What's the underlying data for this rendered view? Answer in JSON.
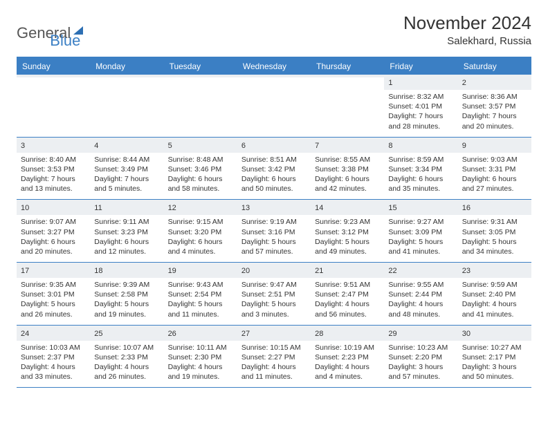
{
  "brand": {
    "part1": "General",
    "part2": "Blue"
  },
  "title": "November 2024",
  "location": "Salekhard, Russia",
  "colors": {
    "accent": "#3b7fc4",
    "shade_row": "#eceff2",
    "text": "#333333",
    "background": "#ffffff"
  },
  "typography": {
    "title_fontsize": 26,
    "subtitle_fontsize": 15,
    "dow_fontsize": 12,
    "daynum_fontsize": 11,
    "info_fontsize": 10.5
  },
  "days_of_week": [
    "Sunday",
    "Monday",
    "Tuesday",
    "Wednesday",
    "Thursday",
    "Friday",
    "Saturday"
  ],
  "weeks": [
    [
      {
        "day": "",
        "sunrise": "",
        "sunset": "",
        "daylight": ""
      },
      {
        "day": "",
        "sunrise": "",
        "sunset": "",
        "daylight": ""
      },
      {
        "day": "",
        "sunrise": "",
        "sunset": "",
        "daylight": ""
      },
      {
        "day": "",
        "sunrise": "",
        "sunset": "",
        "daylight": ""
      },
      {
        "day": "",
        "sunrise": "",
        "sunset": "",
        "daylight": ""
      },
      {
        "day": "1",
        "sunrise": "Sunrise: 8:32 AM",
        "sunset": "Sunset: 4:01 PM",
        "daylight": "Daylight: 7 hours and 28 minutes."
      },
      {
        "day": "2",
        "sunrise": "Sunrise: 8:36 AM",
        "sunset": "Sunset: 3:57 PM",
        "daylight": "Daylight: 7 hours and 20 minutes."
      }
    ],
    [
      {
        "day": "3",
        "sunrise": "Sunrise: 8:40 AM",
        "sunset": "Sunset: 3:53 PM",
        "daylight": "Daylight: 7 hours and 13 minutes."
      },
      {
        "day": "4",
        "sunrise": "Sunrise: 8:44 AM",
        "sunset": "Sunset: 3:49 PM",
        "daylight": "Daylight: 7 hours and 5 minutes."
      },
      {
        "day": "5",
        "sunrise": "Sunrise: 8:48 AM",
        "sunset": "Sunset: 3:46 PM",
        "daylight": "Daylight: 6 hours and 58 minutes."
      },
      {
        "day": "6",
        "sunrise": "Sunrise: 8:51 AM",
        "sunset": "Sunset: 3:42 PM",
        "daylight": "Daylight: 6 hours and 50 minutes."
      },
      {
        "day": "7",
        "sunrise": "Sunrise: 8:55 AM",
        "sunset": "Sunset: 3:38 PM",
        "daylight": "Daylight: 6 hours and 42 minutes."
      },
      {
        "day": "8",
        "sunrise": "Sunrise: 8:59 AM",
        "sunset": "Sunset: 3:34 PM",
        "daylight": "Daylight: 6 hours and 35 minutes."
      },
      {
        "day": "9",
        "sunrise": "Sunrise: 9:03 AM",
        "sunset": "Sunset: 3:31 PM",
        "daylight": "Daylight: 6 hours and 27 minutes."
      }
    ],
    [
      {
        "day": "10",
        "sunrise": "Sunrise: 9:07 AM",
        "sunset": "Sunset: 3:27 PM",
        "daylight": "Daylight: 6 hours and 20 minutes."
      },
      {
        "day": "11",
        "sunrise": "Sunrise: 9:11 AM",
        "sunset": "Sunset: 3:23 PM",
        "daylight": "Daylight: 6 hours and 12 minutes."
      },
      {
        "day": "12",
        "sunrise": "Sunrise: 9:15 AM",
        "sunset": "Sunset: 3:20 PM",
        "daylight": "Daylight: 6 hours and 4 minutes."
      },
      {
        "day": "13",
        "sunrise": "Sunrise: 9:19 AM",
        "sunset": "Sunset: 3:16 PM",
        "daylight": "Daylight: 5 hours and 57 minutes."
      },
      {
        "day": "14",
        "sunrise": "Sunrise: 9:23 AM",
        "sunset": "Sunset: 3:12 PM",
        "daylight": "Daylight: 5 hours and 49 minutes."
      },
      {
        "day": "15",
        "sunrise": "Sunrise: 9:27 AM",
        "sunset": "Sunset: 3:09 PM",
        "daylight": "Daylight: 5 hours and 41 minutes."
      },
      {
        "day": "16",
        "sunrise": "Sunrise: 9:31 AM",
        "sunset": "Sunset: 3:05 PM",
        "daylight": "Daylight: 5 hours and 34 minutes."
      }
    ],
    [
      {
        "day": "17",
        "sunrise": "Sunrise: 9:35 AM",
        "sunset": "Sunset: 3:01 PM",
        "daylight": "Daylight: 5 hours and 26 minutes."
      },
      {
        "day": "18",
        "sunrise": "Sunrise: 9:39 AM",
        "sunset": "Sunset: 2:58 PM",
        "daylight": "Daylight: 5 hours and 19 minutes."
      },
      {
        "day": "19",
        "sunrise": "Sunrise: 9:43 AM",
        "sunset": "Sunset: 2:54 PM",
        "daylight": "Daylight: 5 hours and 11 minutes."
      },
      {
        "day": "20",
        "sunrise": "Sunrise: 9:47 AM",
        "sunset": "Sunset: 2:51 PM",
        "daylight": "Daylight: 5 hours and 3 minutes."
      },
      {
        "day": "21",
        "sunrise": "Sunrise: 9:51 AM",
        "sunset": "Sunset: 2:47 PM",
        "daylight": "Daylight: 4 hours and 56 minutes."
      },
      {
        "day": "22",
        "sunrise": "Sunrise: 9:55 AM",
        "sunset": "Sunset: 2:44 PM",
        "daylight": "Daylight: 4 hours and 48 minutes."
      },
      {
        "day": "23",
        "sunrise": "Sunrise: 9:59 AM",
        "sunset": "Sunset: 2:40 PM",
        "daylight": "Daylight: 4 hours and 41 minutes."
      }
    ],
    [
      {
        "day": "24",
        "sunrise": "Sunrise: 10:03 AM",
        "sunset": "Sunset: 2:37 PM",
        "daylight": "Daylight: 4 hours and 33 minutes."
      },
      {
        "day": "25",
        "sunrise": "Sunrise: 10:07 AM",
        "sunset": "Sunset: 2:33 PM",
        "daylight": "Daylight: 4 hours and 26 minutes."
      },
      {
        "day": "26",
        "sunrise": "Sunrise: 10:11 AM",
        "sunset": "Sunset: 2:30 PM",
        "daylight": "Daylight: 4 hours and 19 minutes."
      },
      {
        "day": "27",
        "sunrise": "Sunrise: 10:15 AM",
        "sunset": "Sunset: 2:27 PM",
        "daylight": "Daylight: 4 hours and 11 minutes."
      },
      {
        "day": "28",
        "sunrise": "Sunrise: 10:19 AM",
        "sunset": "Sunset: 2:23 PM",
        "daylight": "Daylight: 4 hours and 4 minutes."
      },
      {
        "day": "29",
        "sunrise": "Sunrise: 10:23 AM",
        "sunset": "Sunset: 2:20 PM",
        "daylight": "Daylight: 3 hours and 57 minutes."
      },
      {
        "day": "30",
        "sunrise": "Sunrise: 10:27 AM",
        "sunset": "Sunset: 2:17 PM",
        "daylight": "Daylight: 3 hours and 50 minutes."
      }
    ]
  ]
}
